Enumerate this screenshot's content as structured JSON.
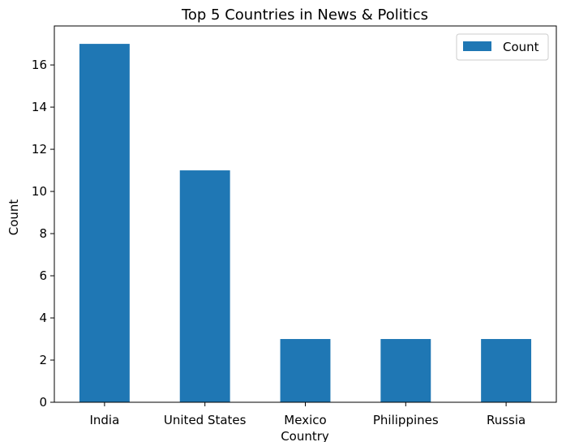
{
  "chart_data": {
    "type": "bar",
    "title": "Top 5 Countries in News & Politics",
    "xlabel": "Country",
    "ylabel": "Count",
    "categories": [
      "India",
      "United States",
      "Mexico",
      "Philippines",
      "Russia"
    ],
    "series": [
      {
        "name": "Count",
        "values": [
          17,
          11,
          3,
          3,
          3
        ],
        "color": "#1f77b4"
      }
    ],
    "ylim": [
      0,
      17.85
    ],
    "yticks": [
      0,
      2,
      4,
      6,
      8,
      10,
      12,
      14,
      16
    ],
    "grid": false,
    "legend": "top-right"
  }
}
